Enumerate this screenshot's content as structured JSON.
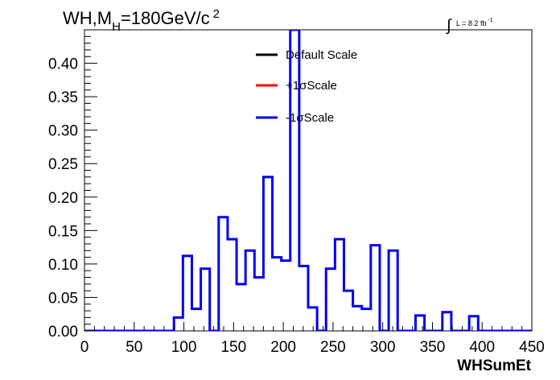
{
  "title_main": "WH,M",
  "title_sub": "H",
  "title_rest": "=180GeV/c",
  "title_sup": "2",
  "lumi_integral": "∫",
  "lumi_label": "L = 8.2 fb",
  "lumi_sup": "-1",
  "colors": {
    "default": "#000000",
    "plus": "#ff0000",
    "minus": "#0000ee"
  },
  "chart_data": {
    "type": "line",
    "xlabel": "WHSumEt",
    "ylabel": "",
    "xlim": [
      0,
      450
    ],
    "ylim": [
      0,
      0.4
    ],
    "grid": false,
    "legend_position": "top-center",
    "x_ticks": [
      "0",
      "50",
      "100",
      "150",
      "200",
      "250",
      "300",
      "350",
      "400",
      "450"
    ],
    "y_ticks": [
      "0.00",
      "0.05",
      "0.10",
      "0.15",
      "0.20",
      "0.25",
      "0.30",
      "0.35",
      "0.40"
    ],
    "bin_width": 9,
    "bin_edges_start": 0,
    "series": [
      {
        "name": "Default Scale",
        "color": "#000000"
      },
      {
        "name": "+1σScale",
        "color": "#ff0000"
      },
      {
        "name": "-1σScale",
        "color": "#0000ee",
        "values": [
          0,
          0,
          0,
          0,
          0,
          0,
          0,
          0,
          0,
          0,
          0.02,
          0.112,
          0.033,
          0.093,
          0,
          0.17,
          0.137,
          0.07,
          0.12,
          0.08,
          0.23,
          0.11,
          0.105,
          0.45,
          0.097,
          0.035,
          0,
          0.093,
          0.137,
          0.06,
          0.037,
          0.033,
          0.128,
          0,
          0.12,
          0,
          0,
          0.023,
          0,
          0,
          0.028,
          0,
          0,
          0.022,
          0,
          0,
          0,
          0,
          0,
          0
        ]
      }
    ]
  }
}
